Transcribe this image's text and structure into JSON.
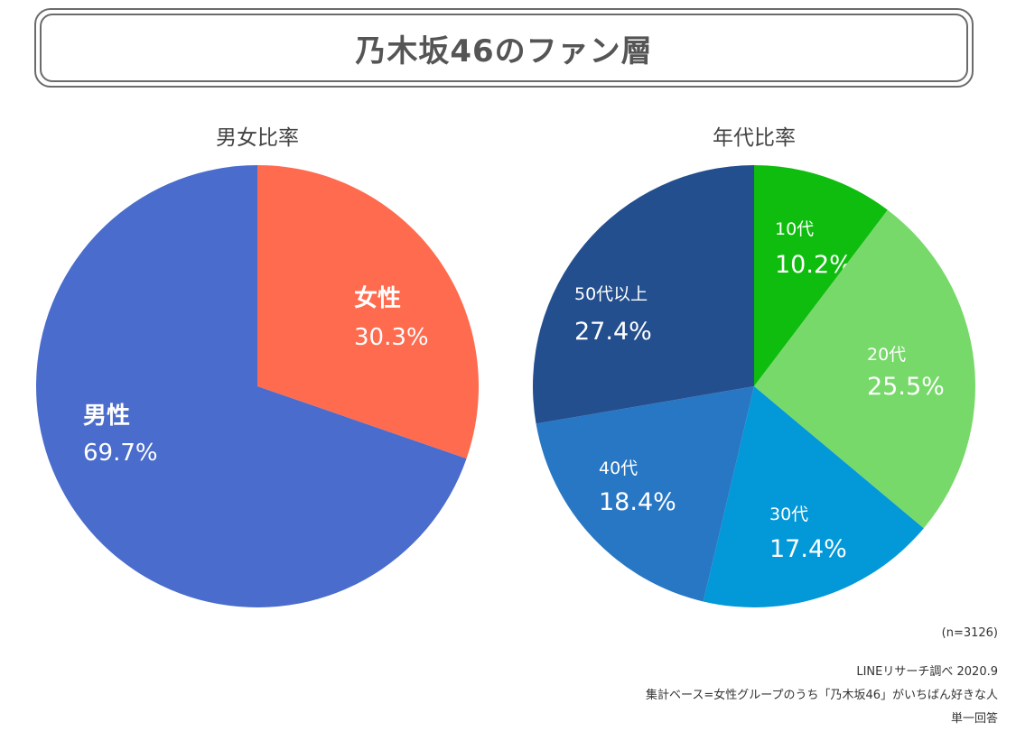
{
  "title": "乃木坂46のファン層",
  "chart_data": [
    {
      "type": "pie",
      "title": "男女比率",
      "slices": [
        {
          "label": "女性",
          "value": 30.3,
          "value_label": "30.3%",
          "color": "#ff6b4f"
        },
        {
          "label": "男性",
          "value": 69.7,
          "value_label": "69.7%",
          "color": "#4a6ccc"
        }
      ]
    },
    {
      "type": "pie",
      "title": "年代比率",
      "slices": [
        {
          "label": "10代",
          "value": 10.2,
          "value_label": "10.2%",
          "color": "#0ebd0e"
        },
        {
          "label": "20代",
          "value": 25.5,
          "value_label": "25.5%",
          "color": "#77d969"
        },
        {
          "label": "30代",
          "value": 17.4,
          "value_label": "17.4%",
          "color": "#0398d8"
        },
        {
          "label": "40代",
          "value": 18.4,
          "value_label": "18.4%",
          "color": "#2877c4"
        },
        {
          "label": "50代以上",
          "value": 27.4,
          "value_label": "27.4%",
          "color": "#234f8e"
        }
      ]
    }
  ],
  "notes": {
    "n": "(n=3126)",
    "source": "LINEリサーチ調べ 2020.9",
    "base": "集計ベース=女性グループのうち「乃木坂46」がいちばん好きな人",
    "answer": "単一回答"
  }
}
